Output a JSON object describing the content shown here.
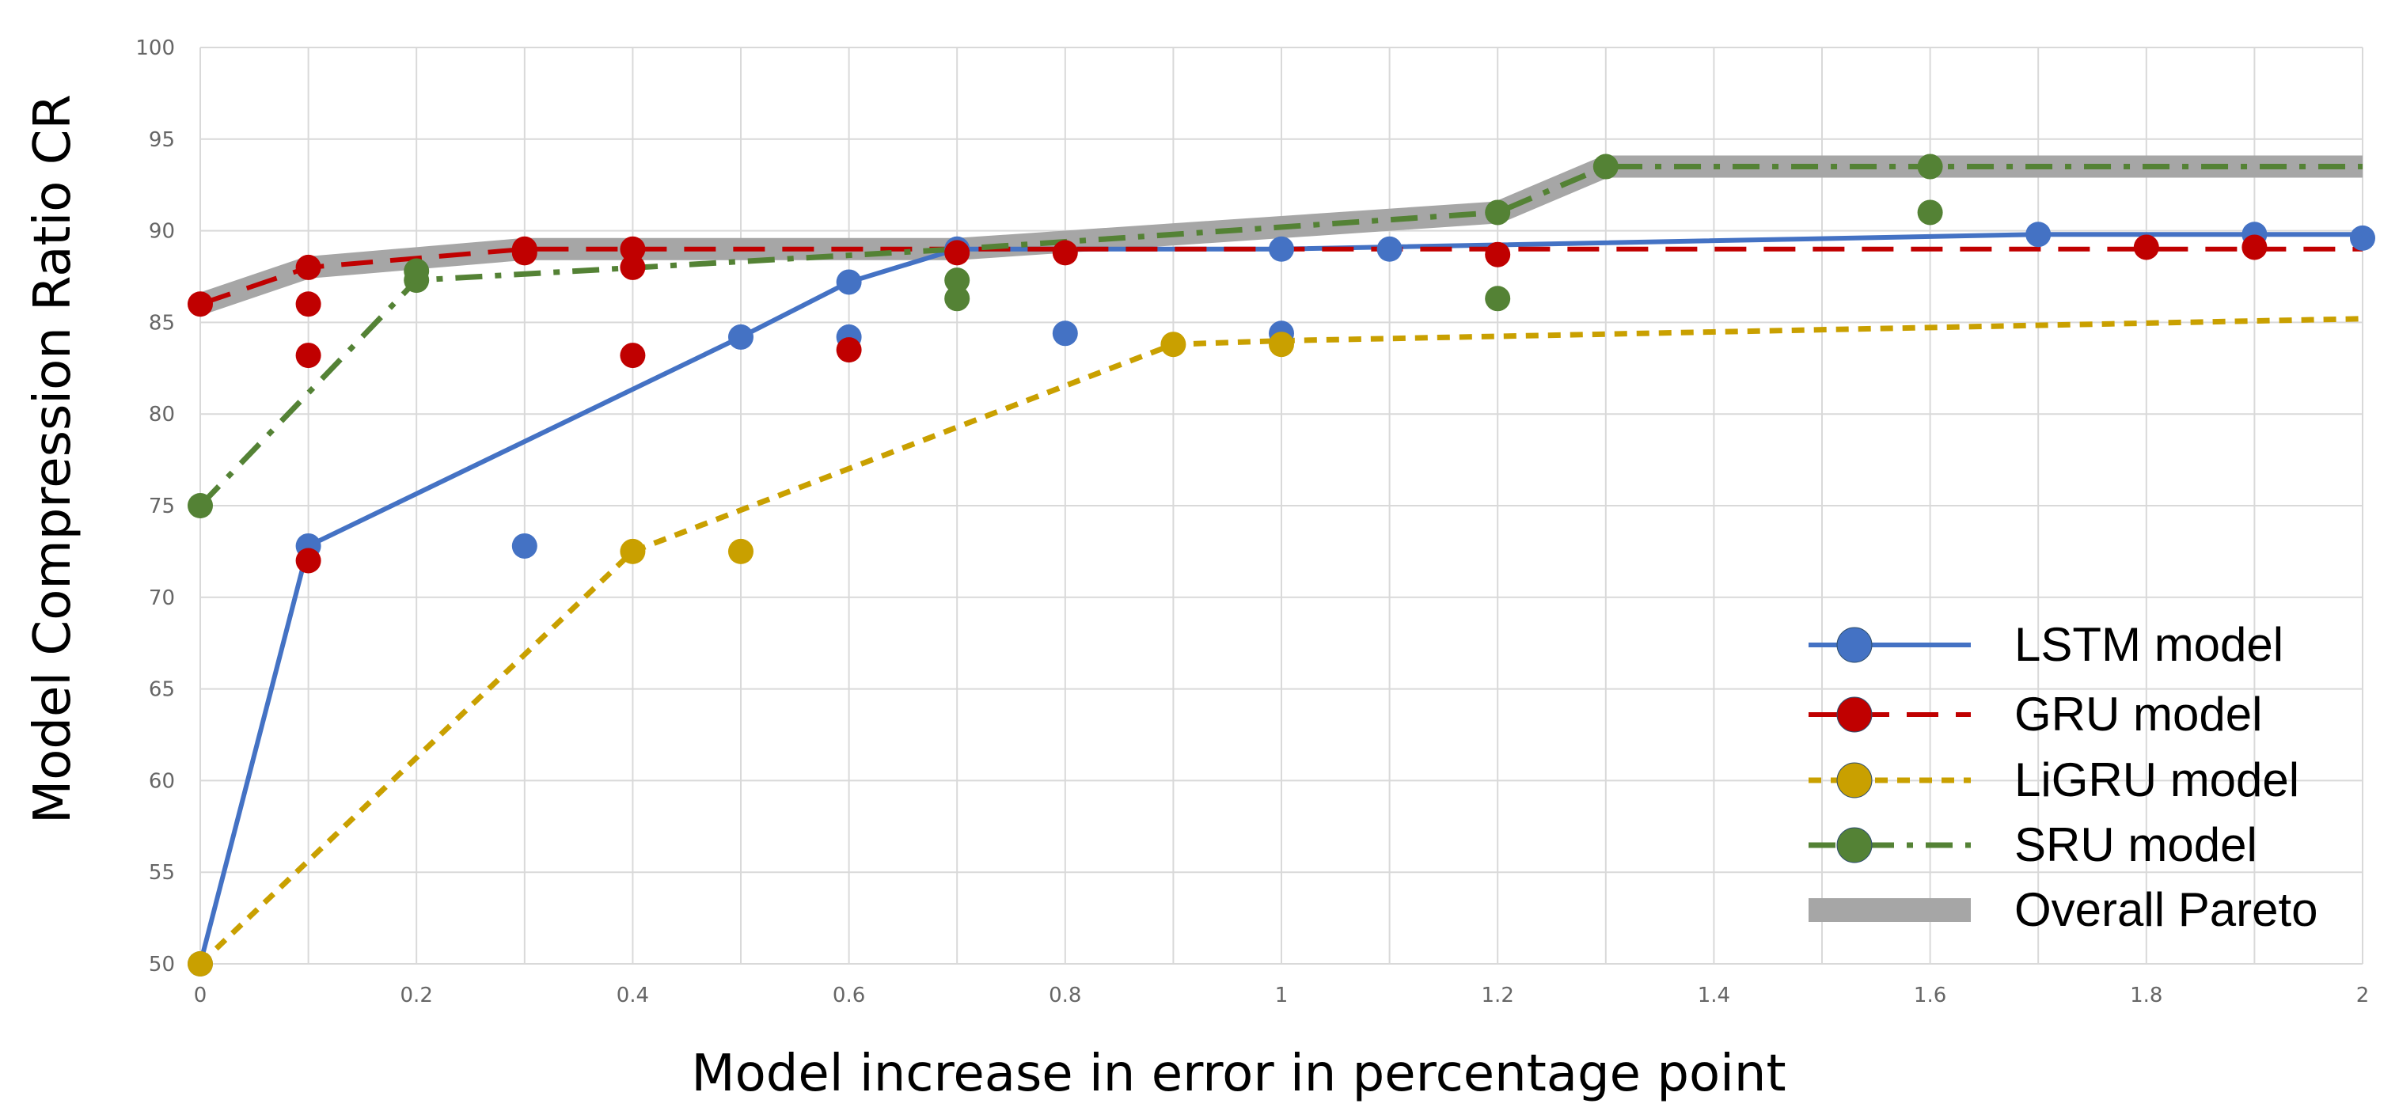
{
  "chart_data": {
    "type": "scatter",
    "title": "",
    "xlabel": "Model increase in error in percentage point",
    "ylabel": "Model Compression Ratio CR",
    "xlim": [
      0,
      2
    ],
    "ylim": [
      50,
      100
    ],
    "x_ticks": [
      "0",
      "0.2",
      "0.4",
      "0.6",
      "0.8",
      "1",
      "1.2",
      "1.4",
      "1.6",
      "1.8",
      "2"
    ],
    "y_ticks": [
      "50",
      "55",
      "60",
      "65",
      "70",
      "75",
      "80",
      "85",
      "90",
      "95",
      "100"
    ],
    "grid": true,
    "legend_position": "bottom-right",
    "series": [
      {
        "name": "LSTM model",
        "color": "#4472C4",
        "line_style": "solid",
        "line": [
          [
            0,
            50
          ],
          [
            0.1,
            72.8
          ],
          [
            0.5,
            84.2
          ],
          [
            0.6,
            87.2
          ],
          [
            0.7,
            89
          ],
          [
            1,
            89
          ],
          [
            1.7,
            89.8
          ],
          [
            2,
            89.8
          ]
        ],
        "points": [
          [
            0,
            50
          ],
          [
            0.1,
            72.8
          ],
          [
            0.3,
            72.8
          ],
          [
            0.5,
            84.2
          ],
          [
            0.6,
            87.2
          ],
          [
            0.6,
            84.2
          ],
          [
            0.7,
            89
          ],
          [
            0.8,
            84.4
          ],
          [
            1,
            89
          ],
          [
            1,
            84.4
          ],
          [
            1.1,
            89
          ],
          [
            1.7,
            89.8
          ],
          [
            1.9,
            89.8
          ],
          [
            2,
            89.6
          ]
        ]
      },
      {
        "name": "GRU model",
        "color": "#C00000",
        "line_style": "long-dash",
        "line": [
          [
            0,
            86
          ],
          [
            0.1,
            88
          ],
          [
            0.3,
            89
          ],
          [
            0.7,
            89
          ],
          [
            2,
            89
          ]
        ],
        "points": [
          [
            0,
            86
          ],
          [
            0.1,
            88
          ],
          [
            0.1,
            86
          ],
          [
            0.1,
            83.2
          ],
          [
            0.1,
            72
          ],
          [
            0.3,
            89
          ],
          [
            0.3,
            88.8
          ],
          [
            0.4,
            89
          ],
          [
            0.4,
            88
          ],
          [
            0.4,
            83.2
          ],
          [
            0.6,
            83.5
          ],
          [
            0.7,
            88.8
          ],
          [
            0.8,
            88.8
          ],
          [
            1.2,
            88.7
          ],
          [
            1.8,
            89.1
          ],
          [
            1.9,
            89.1
          ]
        ]
      },
      {
        "name": "LiGRU model",
        "color": "#C9A000",
        "line_style": "short-dash",
        "line": [
          [
            0,
            50
          ],
          [
            0.4,
            72.5
          ],
          [
            0.9,
            83.8
          ],
          [
            1,
            84
          ],
          [
            2,
            85.2
          ]
        ],
        "points": [
          [
            0,
            50
          ],
          [
            0.4,
            72.5
          ],
          [
            0.5,
            72.5
          ],
          [
            0.9,
            83.8
          ],
          [
            1,
            83.8
          ]
        ]
      },
      {
        "name": "SRU model",
        "color": "#548235",
        "line_style": "dash-dot",
        "line": [
          [
            0,
            75
          ],
          [
            0.2,
            87.3
          ],
          [
            0.7,
            89
          ],
          [
            1.2,
            91
          ],
          [
            1.3,
            93.5
          ],
          [
            2,
            93.5
          ]
        ],
        "points": [
          [
            0,
            75
          ],
          [
            0.2,
            87.3
          ],
          [
            0.2,
            87.8
          ],
          [
            0.7,
            87.3
          ],
          [
            0.7,
            86.3
          ],
          [
            1.2,
            91
          ],
          [
            1.2,
            86.3
          ],
          [
            1.3,
            93.5
          ],
          [
            1.6,
            93.5
          ],
          [
            1.6,
            91
          ]
        ]
      },
      {
        "name": "Overall Pareto",
        "color": "#A6A6A6",
        "line_style": "thick",
        "line": [
          [
            0,
            86
          ],
          [
            0.1,
            88
          ],
          [
            0.3,
            89
          ],
          [
            0.7,
            89
          ],
          [
            1.2,
            91
          ],
          [
            1.3,
            93.5
          ],
          [
            2,
            93.5
          ]
        ],
        "points": []
      }
    ]
  }
}
